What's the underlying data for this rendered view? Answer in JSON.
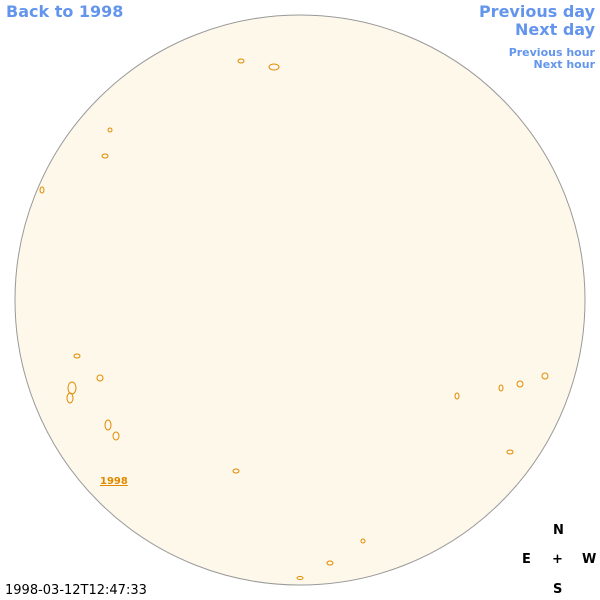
{
  "navigation": {
    "back_to_year": "Back to 1998",
    "previous_day": "Previous day",
    "next_day": "Next day",
    "previous_hour": "Previous hour",
    "next_hour": "Next hour"
  },
  "region_label": "1998",
  "timestamp": "1998-03-12T12:47:33",
  "compass": {
    "north": "N",
    "east": "E",
    "center": "+",
    "west": "W",
    "south": "S"
  }
}
